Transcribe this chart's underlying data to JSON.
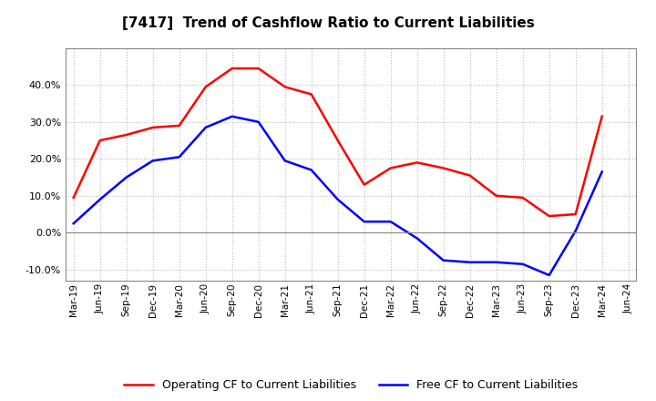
{
  "title": "[7417]  Trend of Cashflow Ratio to Current Liabilities",
  "x_labels": [
    "Mar-19",
    "Jun-19",
    "Sep-19",
    "Dec-19",
    "Mar-20",
    "Jun-20",
    "Sep-20",
    "Dec-20",
    "Mar-21",
    "Jun-21",
    "Sep-21",
    "Dec-21",
    "Mar-22",
    "Jun-22",
    "Sep-22",
    "Dec-22",
    "Mar-23",
    "Jun-23",
    "Sep-23",
    "Dec-23",
    "Mar-24",
    "Jun-24"
  ],
  "operating_cf": [
    9.5,
    25.0,
    26.5,
    28.5,
    29.0,
    39.5,
    44.5,
    44.5,
    39.5,
    37.5,
    25.0,
    13.0,
    17.5,
    19.0,
    17.5,
    15.5,
    10.0,
    9.5,
    4.5,
    5.0,
    31.5,
    null
  ],
  "free_cf": [
    2.5,
    9.0,
    15.0,
    19.5,
    20.5,
    28.5,
    31.5,
    30.0,
    19.5,
    17.0,
    9.0,
    3.0,
    3.0,
    -1.5,
    -7.5,
    -8.0,
    -8.0,
    -8.5,
    -11.5,
    0.5,
    16.5,
    null
  ],
  "operating_color": "#FF0000",
  "free_color": "#0000FF",
  "ylim": [
    -13,
    50
  ],
  "yticks": [
    -10,
    0,
    10,
    20,
    30,
    40
  ],
  "legend_labels": [
    "Operating CF to Current Liabilities",
    "Free CF to Current Liabilities"
  ],
  "background_color": "#FFFFFF",
  "plot_bg_color": "#FFFFFF",
  "grid_color": "#BBBBBB"
}
